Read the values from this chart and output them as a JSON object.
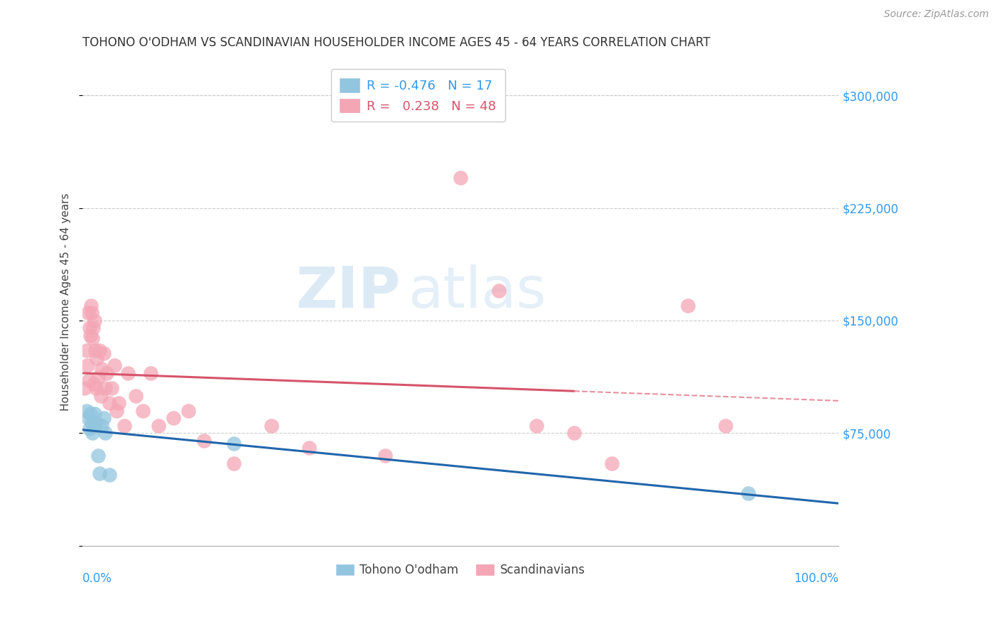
{
  "title": "TOHONO O'ODHAM VS SCANDINAVIAN HOUSEHOLDER INCOME AGES 45 - 64 YEARS CORRELATION CHART",
  "source": "Source: ZipAtlas.com",
  "ylabel": "Householder Income Ages 45 - 64 years",
  "yticks": [
    0,
    75000,
    150000,
    225000,
    300000
  ],
  "ytick_labels": [
    "",
    "$75,000",
    "$150,000",
    "$225,000",
    "$300,000"
  ],
  "xlim": [
    0.0,
    1.0
  ],
  "ylim": [
    0,
    325000
  ],
  "legend_r_blue": "-0.476",
  "legend_n_blue": "17",
  "legend_r_pink": "0.238",
  "legend_n_pink": "48",
  "watermark_zip": "ZIP",
  "watermark_atlas": "atlas",
  "blue_color": "#92c5de",
  "pink_color": "#f4a6b5",
  "blue_line_color": "#2166ac",
  "pink_line_color": "#d6546a",
  "pink_dash_color": "#e8909e",
  "blue_label": "Tohono O'odham",
  "pink_label": "Scandinavians",
  "tohono_x": [
    0.005,
    0.007,
    0.009,
    0.01,
    0.012,
    0.013,
    0.015,
    0.016,
    0.018,
    0.02,
    0.022,
    0.025,
    0.028,
    0.03,
    0.035,
    0.2,
    0.88
  ],
  "tohono_y": [
    90000,
    85000,
    78000,
    88000,
    82000,
    75000,
    80000,
    88000,
    82000,
    60000,
    48000,
    80000,
    85000,
    75000,
    47000,
    68000,
    35000
  ],
  "scandinavian_x": [
    0.003,
    0.005,
    0.006,
    0.007,
    0.008,
    0.009,
    0.01,
    0.011,
    0.012,
    0.013,
    0.014,
    0.015,
    0.016,
    0.017,
    0.018,
    0.019,
    0.02,
    0.022,
    0.024,
    0.025,
    0.028,
    0.03,
    0.032,
    0.035,
    0.038,
    0.042,
    0.045,
    0.048,
    0.055,
    0.06,
    0.07,
    0.08,
    0.09,
    0.1,
    0.12,
    0.14,
    0.16,
    0.2,
    0.25,
    0.3,
    0.4,
    0.5,
    0.55,
    0.6,
    0.65,
    0.7,
    0.8,
    0.85
  ],
  "scandinavian_y": [
    105000,
    130000,
    120000,
    155000,
    110000,
    145000,
    140000,
    160000,
    155000,
    138000,
    145000,
    108000,
    150000,
    130000,
    105000,
    125000,
    112000,
    130000,
    100000,
    118000,
    128000,
    105000,
    115000,
    95000,
    105000,
    120000,
    90000,
    95000,
    80000,
    115000,
    100000,
    90000,
    115000,
    80000,
    85000,
    90000,
    70000,
    55000,
    80000,
    65000,
    60000,
    245000,
    170000,
    80000,
    75000,
    55000,
    160000,
    80000
  ]
}
